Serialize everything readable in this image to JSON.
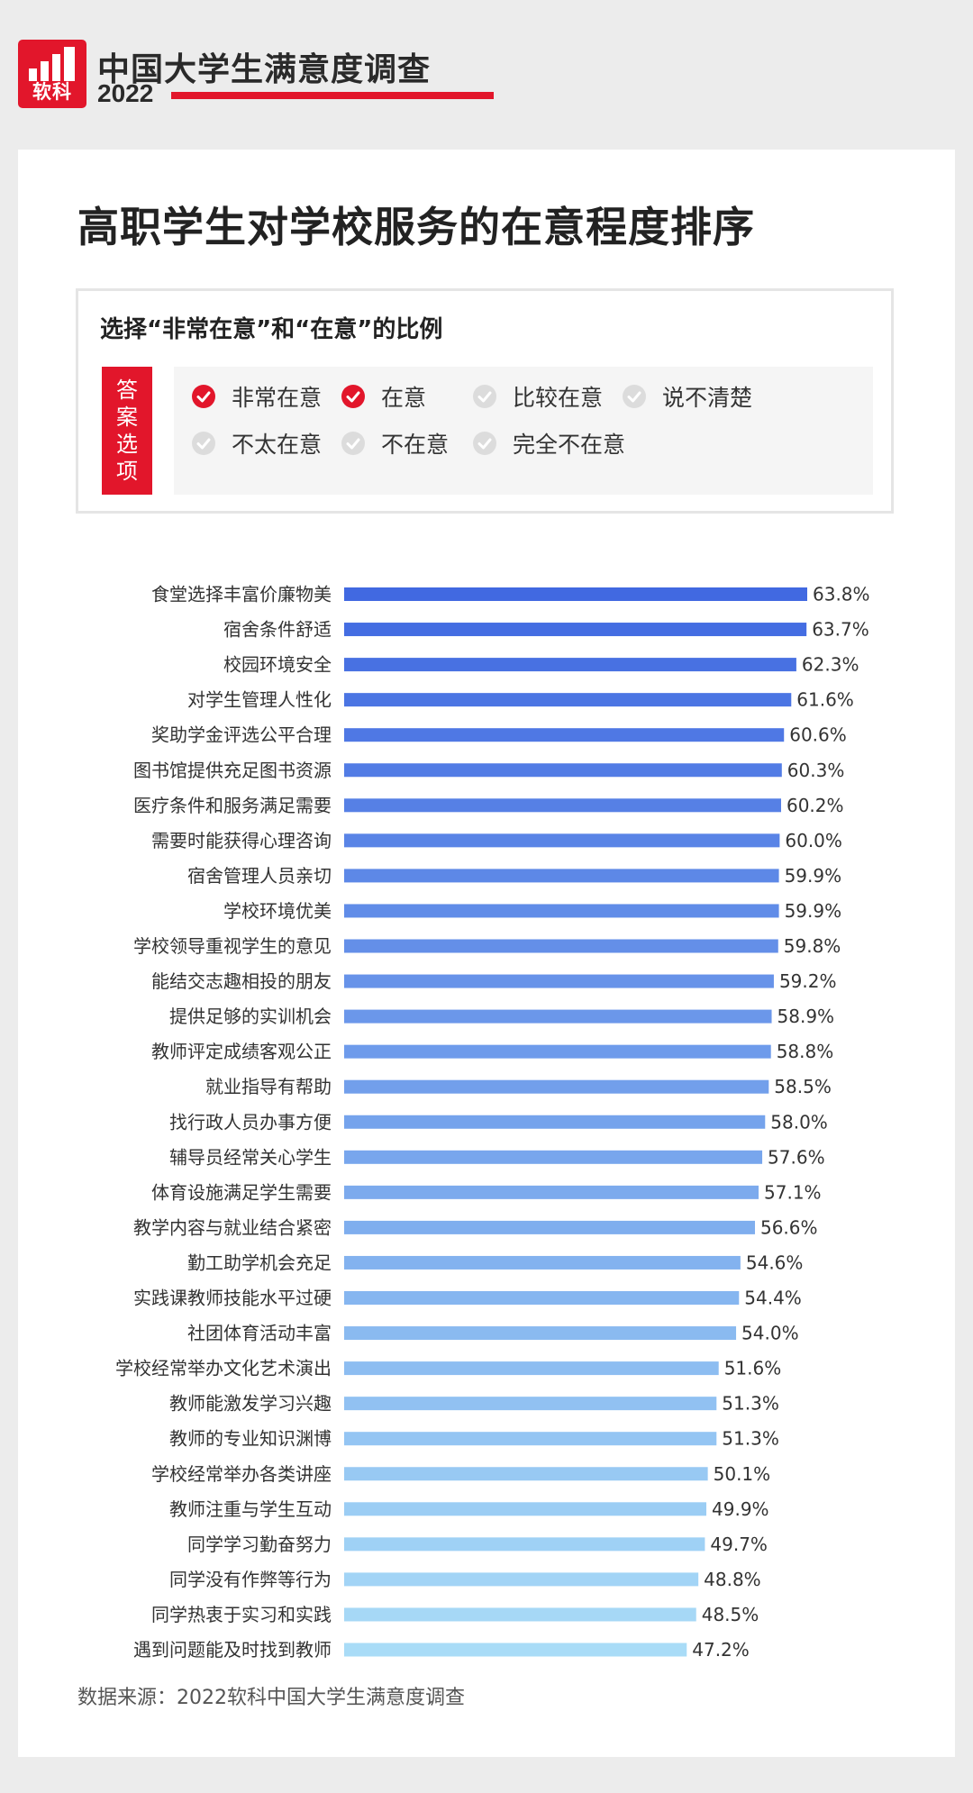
{
  "header": {
    "logo_text": "软科",
    "title": "中国大学生满意度调查",
    "year": "2022",
    "accent_color": "#e2162b"
  },
  "legend": {
    "title": "选择“非常在意”和“在意”的比例",
    "tag": "答案选项",
    "options": [
      {
        "label": "非常在意",
        "selected": true
      },
      {
        "label": "在意",
        "selected": true
      },
      {
        "label": "比较在意",
        "selected": false
      },
      {
        "label": "说不清楚",
        "selected": false
      },
      {
        "label": "不太在意",
        "selected": false
      },
      {
        "label": "不在意",
        "selected": false
      },
      {
        "label": "完全不在意",
        "selected": false
      }
    ],
    "icons": {
      "selected": "check-circle-red-icon",
      "unselected": "check-circle-gray-icon"
    }
  },
  "chart_data": {
    "type": "bar",
    "orientation": "horizontal",
    "title": "高职学生对学校服务的在意程度排序",
    "categories": [
      "食堂选择丰富价廉物美",
      "宿舍条件舒适",
      "校园环境安全",
      "对学生管理人性化",
      "奖助学金评选公平合理",
      "图书馆提供充足图书资源",
      "医疗条件和服务满足需要",
      "需要时能获得心理咨询",
      "宿舍管理人员亲切",
      "学校环境优美",
      "学校领导重视学生的意见",
      "能结交志趣相投的朋友",
      "提供足够的实训机会",
      "教师评定成绩客观公正",
      "就业指导有帮助",
      "找行政人员办事方便",
      "辅导员经常关心学生",
      "体育设施满足学生需要",
      "教学内容与就业结合紧密",
      "勤工助学机会充足",
      "实践课教师技能水平过硬",
      "社团体育活动丰富",
      "学校经常举办文化艺术演出",
      "教师能激发学习兴趣",
      "教师的专业知识渊博",
      "学校经常举办各类讲座",
      "教师注重与学生互动",
      "同学学习勤奋努力",
      "同学没有作弊等行为",
      "同学热衷于实习和实践",
      "遇到问题能及时找到教师"
    ],
    "values": [
      63.8,
      63.7,
      62.3,
      61.6,
      60.6,
      60.3,
      60.2,
      60.0,
      59.9,
      59.9,
      59.8,
      59.2,
      58.9,
      58.8,
      58.5,
      58.0,
      57.6,
      57.1,
      56.6,
      54.6,
      54.4,
      54.0,
      51.6,
      51.3,
      51.3,
      50.1,
      49.9,
      49.7,
      48.8,
      48.5,
      47.2
    ],
    "value_labels": [
      "63.8%",
      "63.7%",
      "62.3%",
      "61.6%",
      "60.6%",
      "60.3%",
      "60.2%",
      "60.0%",
      "59.9%",
      "59.9%",
      "59.8%",
      "59.2%",
      "58.9%",
      "58.8%",
      "58.5%",
      "58.0%",
      "57.6%",
      "57.1%",
      "56.6%",
      "54.6%",
      "54.4%",
      "54.0%",
      "51.6%",
      "51.3%",
      "51.3%",
      "50.1%",
      "49.9%",
      "49.7%",
      "48.8%",
      "48.5%",
      "47.2%"
    ],
    "xlim": [
      0,
      63.8
    ],
    "grid": false,
    "color_gradient": [
      "#4169e1",
      "#a9dcf7"
    ]
  },
  "source": "数据来源：2022软科中国大学生满意度调查"
}
